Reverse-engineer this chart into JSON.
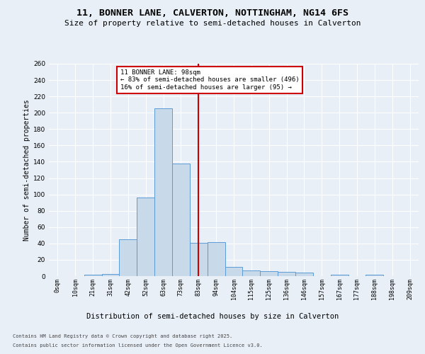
{
  "title_line1": "11, BONNER LANE, CALVERTON, NOTTINGHAM, NG14 6FS",
  "title_line2": "Size of property relative to semi-detached houses in Calverton",
  "xlabel": "Distribution of semi-detached houses by size in Calverton",
  "ylabel": "Number of semi-detached properties",
  "categories": [
    "0sqm",
    "10sqm",
    "21sqm",
    "31sqm",
    "42sqm",
    "52sqm",
    "63sqm",
    "73sqm",
    "83sqm",
    "94sqm",
    "104sqm",
    "115sqm",
    "125sqm",
    "136sqm",
    "146sqm",
    "157sqm",
    "167sqm",
    "177sqm",
    "188sqm",
    "198sqm",
    "209sqm"
  ],
  "bar_values": [
    0,
    0,
    2,
    3,
    45,
    96,
    205,
    138,
    41,
    42,
    11,
    7,
    6,
    5,
    4,
    0,
    2,
    0,
    2,
    0,
    0
  ],
  "bar_color": "#c8d9ea",
  "bar_edge_color": "#5b9bd5",
  "ylim": [
    0,
    260
  ],
  "yticks": [
    0,
    20,
    40,
    60,
    80,
    100,
    120,
    140,
    160,
    180,
    200,
    220,
    240,
    260
  ],
  "vline_position": 8.5,
  "annotation_title": "11 BONNER LANE: 98sqm",
  "annotation_line1": "← 83% of semi-detached houses are smaller (496)",
  "annotation_line2": "16% of semi-detached houses are larger (95) →",
  "footnote1": "Contains HM Land Registry data © Crown copyright and database right 2025.",
  "footnote2": "Contains public sector information licensed under the Open Government Licence v3.0.",
  "background_color": "#e8eff7",
  "plot_bg_color": "#e8eff7",
  "grid_color": "#ffffff",
  "annotation_box_color": "#ffffff",
  "annotation_box_edge": "#cc0000",
  "vline_color": "#cc0000",
  "title1_fontsize": 9.5,
  "title2_fontsize": 8,
  "ylabel_fontsize": 7,
  "xlabel_fontsize": 7.5,
  "tick_fontsize": 6,
  "annot_fontsize": 6.5,
  "footnote_fontsize": 5
}
